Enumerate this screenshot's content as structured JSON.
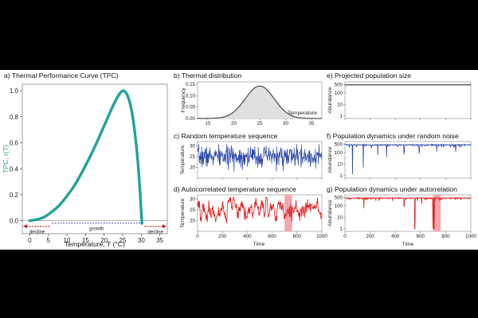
{
  "colors": {
    "tpc": "#1fa39a",
    "blue": "#2d49a8",
    "red": "#e01818",
    "highlight": "#f4a6ae",
    "gray_curve": "#555555",
    "growth_line": "#2a3ba8",
    "decline": "#c81e1e"
  },
  "chart_data": [
    {
      "panel": "a",
      "type": "line",
      "title": "a) Thermal Performance Curve (TPC)",
      "xlabel": "Temperature, T (°C)",
      "ylabel": "TPC, r(T)",
      "xlim": [
        -2,
        37
      ],
      "ylim": [
        -0.1,
        1.05
      ],
      "xticks": [
        0,
        5,
        10,
        15,
        20,
        25,
        30,
        35
      ],
      "yticks": [
        0.0,
        0.2,
        0.4,
        0.6,
        0.8,
        1.0
      ],
      "ytick_labels": [
        "0.0",
        "0.2",
        "0.4",
        "0.6",
        "0.8",
        "1.0"
      ],
      "series": [
        {
          "name": "TPC",
          "x": [
            0,
            2,
            4,
            6,
            8,
            10,
            12,
            14,
            16,
            18,
            20,
            22,
            23,
            24,
            25,
            26,
            27,
            28,
            29,
            29.6,
            30,
            30.2
          ],
          "y": [
            0.0,
            0.01,
            0.03,
            0.07,
            0.12,
            0.19,
            0.27,
            0.37,
            0.48,
            0.6,
            0.73,
            0.86,
            0.92,
            0.97,
            1.0,
            0.98,
            0.9,
            0.74,
            0.48,
            0.25,
            0.06,
            -0.02
          ]
        }
      ],
      "annotations": {
        "growth": "growth",
        "decline_left": "decline",
        "decline_right": "decline"
      },
      "growth_range": [
        6,
        30
      ]
    },
    {
      "panel": "b",
      "type": "area",
      "title": "b) Thermal distribution",
      "xlabel": "Temperature",
      "ylabel": "Frequency",
      "xlim": [
        13,
        37
      ],
      "ylim": [
        0,
        0.16
      ],
      "xticks": [
        15,
        20,
        25,
        30,
        35
      ],
      "yticks": [
        0.0,
        0.05,
        0.1,
        0.15
      ],
      "ytick_labels": [
        "0.00",
        "0.05",
        "0.10",
        "0.15"
      ],
      "distribution": {
        "mean": 25,
        "sd": 2.8,
        "peak": 0.142
      }
    },
    {
      "panel": "c",
      "type": "line",
      "title": "c) Random temperature sequence",
      "ylabel": "Temperature",
      "xlim": [
        0,
        1000
      ],
      "ylim": [
        15,
        32
      ],
      "yticks": [
        20,
        25,
        30
      ],
      "series": [
        {
          "name": "random",
          "mean": 25,
          "sd": 2.5,
          "n": 400
        }
      ]
    },
    {
      "panel": "d",
      "type": "line",
      "title": "d) Autocorrelated temperature sequence",
      "xlabel": "Time",
      "ylabel": "Temperature",
      "xlim": [
        0,
        1000
      ],
      "ylim": [
        15,
        32
      ],
      "xticks": [
        0,
        200,
        400,
        600,
        800,
        1000
      ],
      "yticks": [
        20,
        25,
        30
      ],
      "series": [
        {
          "name": "autocorrelated",
          "mean": 25,
          "sd": 2.6,
          "n": 400
        }
      ],
      "highlight": [
        700,
        760
      ]
    },
    {
      "panel": "e",
      "type": "line",
      "title": "e) Projected population size",
      "ylabel": "Abundance",
      "xlim": [
        0,
        1000
      ],
      "ytick_labels": [
        "500",
        "100",
        "10",
        "1"
      ],
      "ytick_values": [
        500,
        100,
        10,
        1
      ],
      "series": [
        {
          "name": "projected",
          "x": [
            0,
            1000
          ],
          "y": [
            500,
            500
          ]
        }
      ]
    },
    {
      "panel": "f",
      "type": "line",
      "title": "f) Population dynamics under random noise",
      "ylabel": "Abundance",
      "xlim": [
        0,
        1000
      ],
      "ytick_labels": [
        "500",
        "100",
        "10",
        "1"
      ],
      "ytick_values": [
        500,
        100,
        10,
        1
      ],
      "series": [
        {
          "name": "random",
          "n": 400,
          "dips": [
            [
              60,
              1.3
            ],
            [
              145,
              5
            ],
            [
              260,
              60
            ],
            [
              330,
              40
            ],
            [
              470,
              80
            ],
            [
              590,
              90
            ],
            [
              730,
              120
            ],
            [
              880,
              110
            ]
          ]
        }
      ]
    },
    {
      "panel": "g",
      "type": "line",
      "title": "g) Population dynamics under autorrelation",
      "xlabel": "Time",
      "ylabel": "Abundance",
      "xlim": [
        0,
        1000
      ],
      "xticks": [
        0,
        200,
        400,
        600,
        800,
        1000
      ],
      "ytick_labels": [
        "500",
        "100",
        "10",
        "1"
      ],
      "ytick_values": [
        500,
        100,
        10,
        1
      ],
      "series": [
        {
          "name": "autocorrelated",
          "n": 400,
          "dips": [
            [
              150,
              60
            ],
            [
              470,
              90
            ],
            [
              555,
              1
            ],
            [
              610,
              150
            ],
            [
              700,
              1
            ],
            [
              708,
              1
            ]
          ]
        }
      ],
      "highlight": [
        700,
        760
      ]
    }
  ]
}
